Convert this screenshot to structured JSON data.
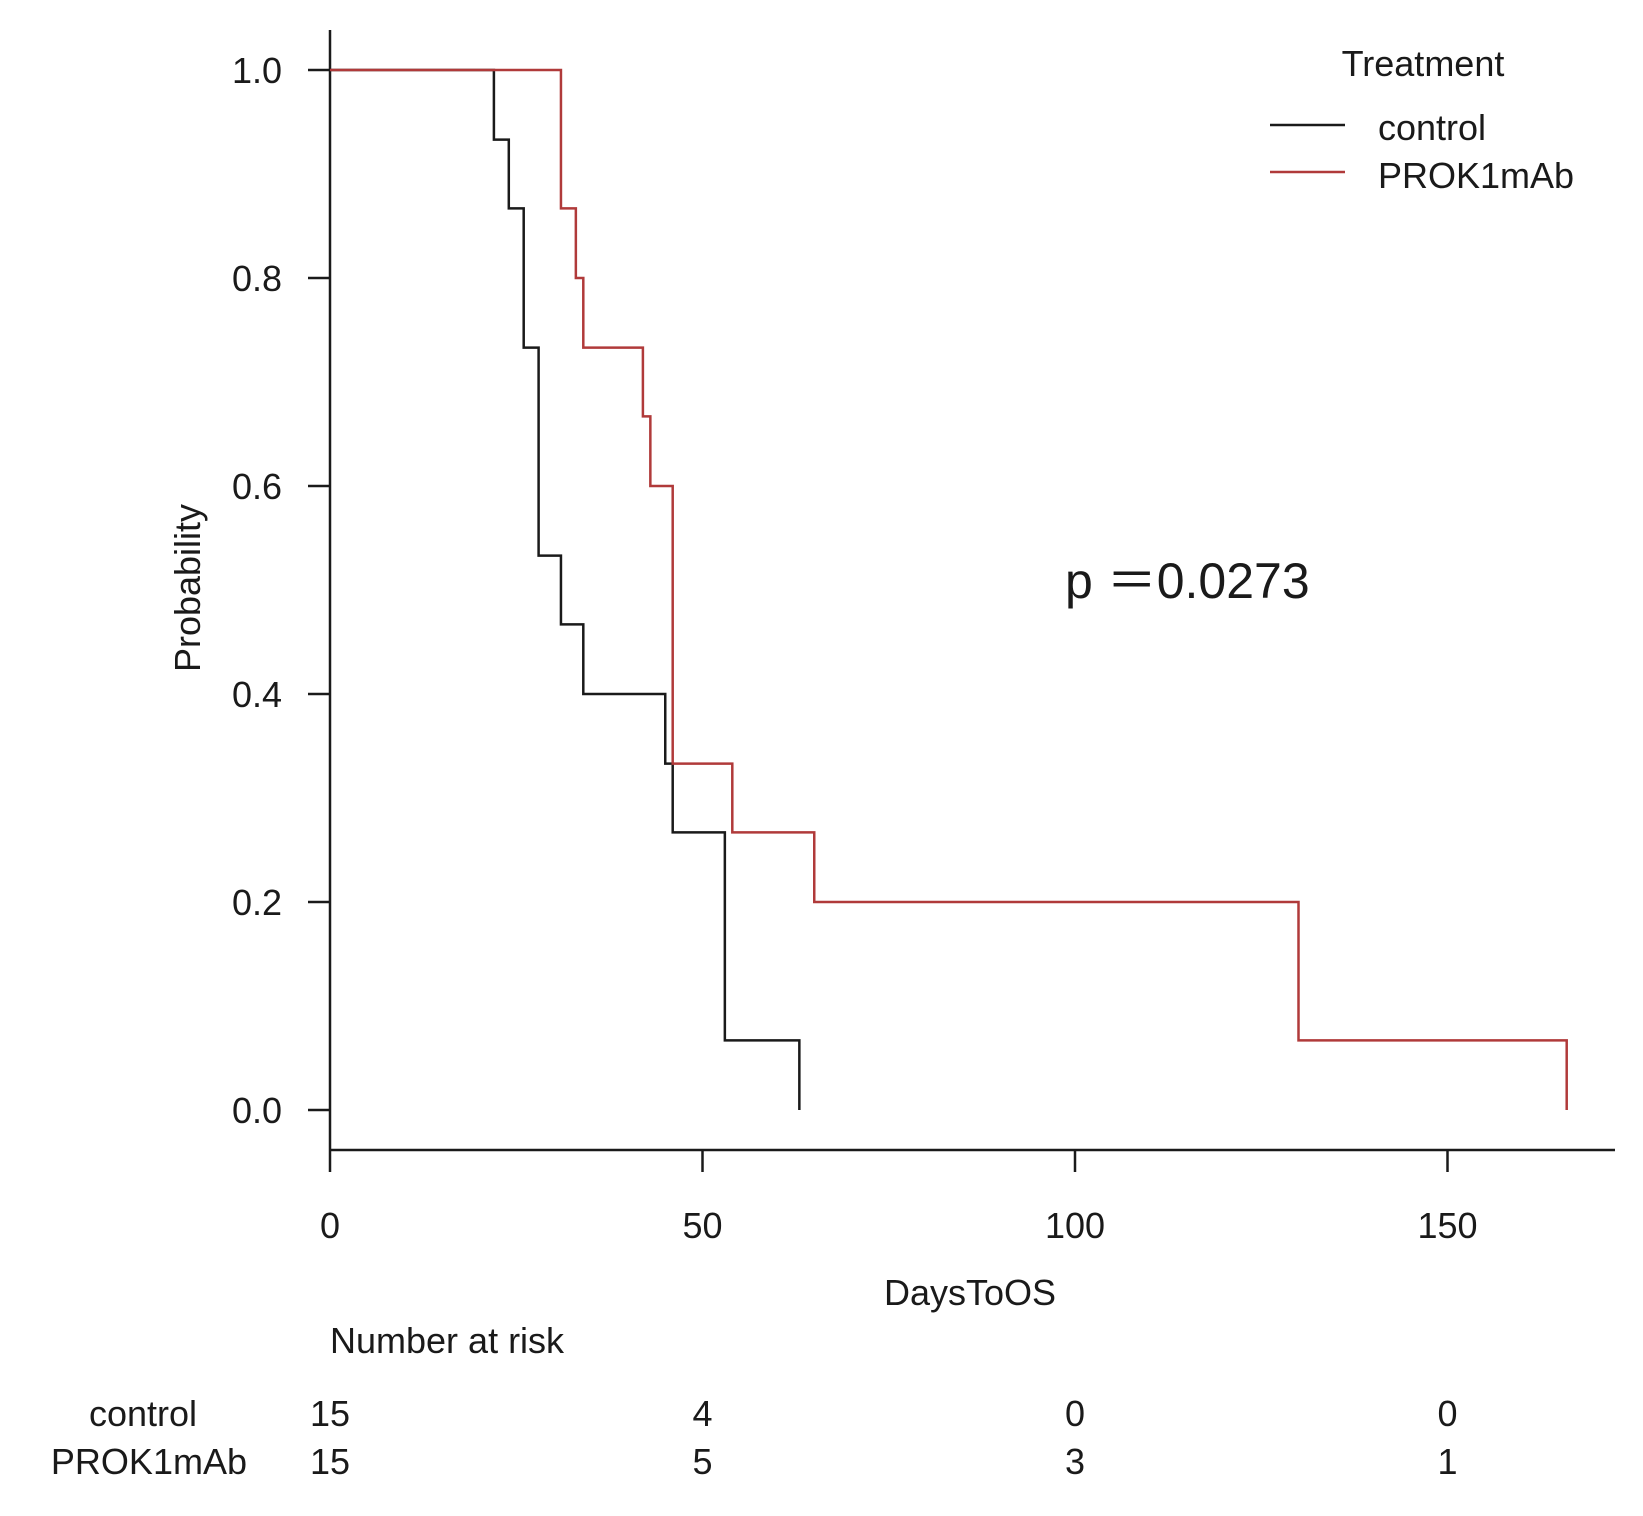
{
  "chart_data": {
    "type": "line",
    "subtype": "kaplan-meier-step",
    "xlabel": "DaysToOS",
    "ylabel": "Probability",
    "xlim": [
      0,
      172
    ],
    "ylim": [
      0,
      1
    ],
    "xticks": [
      "0",
      "50",
      "100",
      "150"
    ],
    "xtick_values": [
      0,
      50,
      100,
      150
    ],
    "yticks": [
      "0.0",
      "0.2",
      "0.4",
      "0.6",
      "0.8",
      "1.0"
    ],
    "ytick_values": [
      0,
      0.2,
      0.4,
      0.6,
      0.8,
      1.0
    ],
    "legend": {
      "title": "Treatment",
      "position": "top-right"
    },
    "series": [
      {
        "name": "control",
        "color": "#1a1a1a",
        "x": [
          0,
          22,
          24,
          26,
          28,
          31,
          34,
          45,
          46,
          53,
          63
        ],
        "y": [
          1.0,
          0.933,
          0.867,
          0.733,
          0.533,
          0.467,
          0.4,
          0.333,
          0.267,
          0.067,
          0.0
        ]
      },
      {
        "name": "PROK1mAb",
        "color": "#b03a3a",
        "x": [
          0,
          31,
          33,
          34,
          42,
          43,
          46,
          54,
          65,
          130,
          166
        ],
        "y": [
          1.0,
          0.867,
          0.8,
          0.733,
          0.667,
          0.6,
          0.333,
          0.267,
          0.2,
          0.067,
          0.0
        ]
      }
    ],
    "annotation": "p ＝0.0273",
    "risk_table": {
      "title": "Number at risk",
      "rows": [
        {
          "label": "control",
          "values": [
            "15",
            "4",
            "0",
            "0"
          ]
        },
        {
          "label": "PROK1mAb",
          "values": [
            "15",
            "5",
            "3",
            "1"
          ]
        }
      ]
    }
  }
}
